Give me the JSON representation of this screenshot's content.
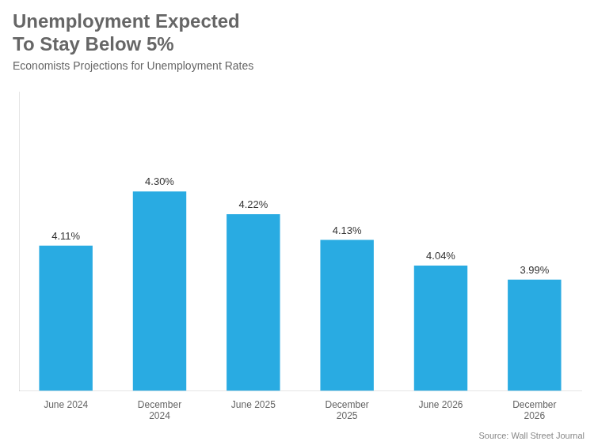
{
  "chart_data": {
    "type": "bar",
    "title": "Unemployment Expected\nTo Stay Below 5%",
    "subtitle": "Economists Projections for Unemployment Rates",
    "source": "Source: Wall Street Journal",
    "categories": [
      "June 2024",
      "December\n2024",
      "June 2025",
      "December\n2025",
      "June 2026",
      "December\n2026"
    ],
    "values": [
      4.11,
      4.3,
      4.22,
      4.13,
      4.04,
      3.99
    ],
    "value_labels": [
      "4.11%",
      "4.30%",
      "4.22%",
      "4.13%",
      "4.04%",
      "3.99%"
    ],
    "data_labels": true,
    "color": "#29ABE2",
    "ylim": [
      3.6,
      4.65
    ],
    "yticks": [],
    "grid": false,
    "tick_labels": "x"
  }
}
